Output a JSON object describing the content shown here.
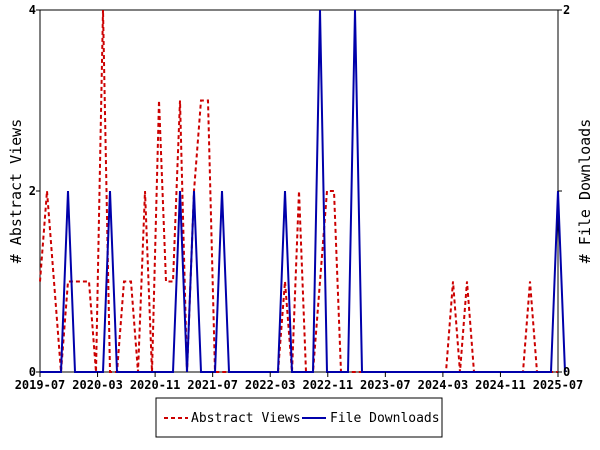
{
  "chart_data": {
    "type": "line",
    "ylabel_left": "# Abstract Views",
    "ylabel_right": "# File Downloads",
    "x_tick_labels": [
      "2019-07",
      "2020-03",
      "2020-11",
      "2021-07",
      "2022-03",
      "2022-11",
      "2023-07",
      "2024-03",
      "2024-11",
      "2025-07"
    ],
    "y_left_ticks": [
      0,
      2,
      4
    ],
    "y_right_ticks": [
      0,
      1,
      2
    ],
    "y_right_tick_labels": [
      "0",
      "",
      "2"
    ],
    "ylim_left": [
      0,
      4
    ],
    "ylim_right": [
      0,
      2
    ],
    "n_points": 75,
    "series": [
      {
        "name": "Abstract Views",
        "axis": "left",
        "color": "#cc0000",
        "style": "dashed",
        "values": [
          1,
          2,
          1,
          0,
          1,
          1,
          1,
          1,
          0,
          4,
          0,
          0,
          1,
          1,
          0,
          2,
          0,
          3,
          1,
          1,
          3,
          0,
          2,
          3,
          3,
          0,
          0,
          0,
          0,
          0,
          0,
          0,
          0,
          0,
          0,
          1,
          0,
          2,
          0,
          0,
          1,
          2,
          2,
          0,
          0,
          0,
          0,
          0,
          0,
          0,
          0,
          0,
          0,
          0,
          0,
          0,
          0,
          0,
          0,
          1,
          0,
          1,
          0,
          0,
          0,
          0,
          0,
          0,
          0,
          0,
          1,
          0,
          0,
          0,
          0
        ]
      },
      {
        "name": "File Downloads",
        "axis": "right",
        "color": "#0000aa",
        "style": "solid",
        "values": [
          0,
          0,
          0,
          0,
          1,
          0,
          0,
          0,
          0,
          0,
          1,
          0,
          0,
          0,
          0,
          0,
          0,
          0,
          0,
          0,
          1,
          0,
          1,
          0,
          0,
          0,
          1,
          0,
          0,
          0,
          0,
          0,
          0,
          0,
          0,
          1,
          0,
          0,
          0,
          0,
          2,
          0,
          0,
          0,
          0,
          2,
          0,
          0,
          0,
          0,
          0,
          0,
          0,
          0,
          0,
          0,
          0,
          0,
          0,
          0,
          0,
          0,
          0,
          0,
          0,
          0,
          0,
          0,
          0,
          0,
          0,
          0,
          0,
          0,
          1,
          0
        ]
      }
    ],
    "legend": {
      "placement": "bottom-center"
    }
  }
}
